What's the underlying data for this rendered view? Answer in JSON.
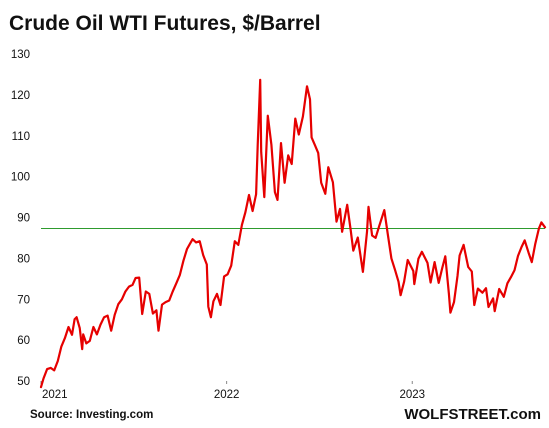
{
  "chart_data": {
    "type": "line",
    "title": "Crude Oil WTI Futures, $/Barrel",
    "source": "Source: Investing.com",
    "brand": "WOLFSTREET.com",
    "xlabel": "",
    "ylabel": "",
    "ylim": [
      50,
      130
    ],
    "yticks": [
      50,
      60,
      70,
      80,
      90,
      100,
      110,
      120,
      130
    ],
    "x_ticks": [
      "2021",
      "2022",
      "2023"
    ],
    "xlim": [
      "2021-01-01",
      "2023-09-19"
    ],
    "grid": false,
    "reference_line": {
      "value": 87.3,
      "color": "#2e9b2e"
    },
    "series": [
      {
        "color": "#e60000",
        "points": [
          [
            "2021-01-01",
            48.5
          ],
          [
            "2021-01-06",
            50.6
          ],
          [
            "2021-01-13",
            52.9
          ],
          [
            "2021-01-20",
            53.2
          ],
          [
            "2021-01-27",
            52.6
          ],
          [
            "2021-02-03",
            54.9
          ],
          [
            "2021-02-10",
            58.4
          ],
          [
            "2021-02-17",
            60.5
          ],
          [
            "2021-02-24",
            63.2
          ],
          [
            "2021-03-03",
            61.3
          ],
          [
            "2021-03-08",
            65.1
          ],
          [
            "2021-03-12",
            65.6
          ],
          [
            "2021-03-18",
            63.0
          ],
          [
            "2021-03-23",
            57.8
          ],
          [
            "2021-03-25",
            61.4
          ],
          [
            "2021-03-31",
            59.2
          ],
          [
            "2021-04-07",
            59.8
          ],
          [
            "2021-04-14",
            63.2
          ],
          [
            "2021-04-21",
            61.4
          ],
          [
            "2021-04-28",
            63.8
          ],
          [
            "2021-05-05",
            65.6
          ],
          [
            "2021-05-12",
            66.0
          ],
          [
            "2021-05-19",
            62.3
          ],
          [
            "2021-05-26",
            66.2
          ],
          [
            "2021-06-02",
            68.8
          ],
          [
            "2021-06-09",
            70.0
          ],
          [
            "2021-06-16",
            71.9
          ],
          [
            "2021-06-23",
            73.1
          ],
          [
            "2021-06-30",
            73.5
          ],
          [
            "2021-07-06",
            75.2
          ],
          [
            "2021-07-13",
            75.3
          ],
          [
            "2021-07-19",
            66.4
          ],
          [
            "2021-07-26",
            71.9
          ],
          [
            "2021-08-02",
            71.3
          ],
          [
            "2021-08-09",
            66.5
          ],
          [
            "2021-08-16",
            67.3
          ],
          [
            "2021-08-20",
            62.3
          ],
          [
            "2021-08-27",
            68.7
          ],
          [
            "2021-09-03",
            69.3
          ],
          [
            "2021-09-10",
            69.7
          ],
          [
            "2021-09-17",
            71.9
          ],
          [
            "2021-09-24",
            73.9
          ],
          [
            "2021-10-01",
            75.9
          ],
          [
            "2021-10-08",
            79.4
          ],
          [
            "2021-10-15",
            82.3
          ],
          [
            "2021-10-22",
            83.8
          ],
          [
            "2021-10-26",
            84.7
          ],
          [
            "2021-11-02",
            83.9
          ],
          [
            "2021-11-09",
            84.2
          ],
          [
            "2021-11-16",
            80.8
          ],
          [
            "2021-11-23",
            78.5
          ],
          [
            "2021-11-26",
            68.2
          ],
          [
            "2021-12-01",
            65.6
          ],
          [
            "2021-12-06",
            69.5
          ],
          [
            "2021-12-13",
            71.3
          ],
          [
            "2021-12-20",
            68.6
          ],
          [
            "2021-12-27",
            75.6
          ],
          [
            "2022-01-03",
            76.1
          ],
          [
            "2022-01-10",
            78.2
          ],
          [
            "2022-01-17",
            84.2
          ],
          [
            "2022-01-24",
            83.3
          ],
          [
            "2022-01-31",
            88.2
          ],
          [
            "2022-02-07",
            91.3
          ],
          [
            "2022-02-14",
            95.5
          ],
          [
            "2022-02-21",
            91.6
          ],
          [
            "2022-02-28",
            95.7
          ],
          [
            "2022-03-03",
            107.7
          ],
          [
            "2022-03-08",
            123.7
          ],
          [
            "2022-03-10",
            106.0
          ],
          [
            "2022-03-16",
            95.0
          ],
          [
            "2022-03-23",
            114.9
          ],
          [
            "2022-03-30",
            107.8
          ],
          [
            "2022-04-06",
            96.2
          ],
          [
            "2022-04-11",
            94.3
          ],
          [
            "2022-04-18",
            108.2
          ],
          [
            "2022-04-25",
            98.5
          ],
          [
            "2022-05-02",
            105.2
          ],
          [
            "2022-05-09",
            103.1
          ],
          [
            "2022-05-16",
            114.2
          ],
          [
            "2022-05-23",
            110.3
          ],
          [
            "2022-05-31",
            114.7
          ],
          [
            "2022-06-08",
            122.1
          ],
          [
            "2022-06-14",
            118.9
          ],
          [
            "2022-06-17",
            109.6
          ],
          [
            "2022-06-24",
            107.6
          ],
          [
            "2022-06-30",
            105.8
          ],
          [
            "2022-07-06",
            98.5
          ],
          [
            "2022-07-14",
            95.8
          ],
          [
            "2022-07-20",
            102.3
          ],
          [
            "2022-07-29",
            98.6
          ],
          [
            "2022-08-05",
            89.0
          ],
          [
            "2022-08-12",
            92.1
          ],
          [
            "2022-08-16",
            86.5
          ],
          [
            "2022-08-26",
            93.1
          ],
          [
            "2022-09-02",
            86.9
          ],
          [
            "2022-09-07",
            81.9
          ],
          [
            "2022-09-16",
            85.1
          ],
          [
            "2022-09-26",
            76.7
          ],
          [
            "2022-10-04",
            86.5
          ],
          [
            "2022-10-07",
            92.6
          ],
          [
            "2022-10-14",
            85.6
          ],
          [
            "2022-10-21",
            85.0
          ],
          [
            "2022-10-28",
            87.9
          ],
          [
            "2022-11-07",
            91.8
          ],
          [
            "2022-11-14",
            85.9
          ],
          [
            "2022-11-21",
            80.0
          ],
          [
            "2022-11-28",
            77.2
          ],
          [
            "2022-12-05",
            74.3
          ],
          [
            "2022-12-09",
            71.0
          ],
          [
            "2022-12-16",
            74.3
          ],
          [
            "2022-12-23",
            79.6
          ],
          [
            "2023-01-03",
            76.9
          ],
          [
            "2023-01-05",
            73.7
          ],
          [
            "2023-01-13",
            79.9
          ],
          [
            "2023-01-20",
            81.6
          ],
          [
            "2023-01-31",
            78.9
          ],
          [
            "2023-02-06",
            74.1
          ],
          [
            "2023-02-14",
            79.1
          ],
          [
            "2023-02-22",
            74.0
          ],
          [
            "2023-03-01",
            77.7
          ],
          [
            "2023-03-07",
            80.5
          ],
          [
            "2023-03-14",
            71.3
          ],
          [
            "2023-03-17",
            66.7
          ],
          [
            "2023-03-24",
            69.3
          ],
          [
            "2023-03-31",
            75.7
          ],
          [
            "2023-04-04",
            80.7
          ],
          [
            "2023-04-12",
            83.3
          ],
          [
            "2023-04-21",
            77.9
          ],
          [
            "2023-04-28",
            76.8
          ],
          [
            "2023-05-03",
            68.6
          ],
          [
            "2023-05-10",
            72.6
          ],
          [
            "2023-05-19",
            71.6
          ],
          [
            "2023-05-26",
            72.7
          ],
          [
            "2023-05-31",
            68.1
          ],
          [
            "2023-06-09",
            70.2
          ],
          [
            "2023-06-12",
            67.1
          ],
          [
            "2023-06-21",
            72.5
          ],
          [
            "2023-06-30",
            70.6
          ],
          [
            "2023-07-07",
            73.9
          ],
          [
            "2023-07-14",
            75.4
          ],
          [
            "2023-07-21",
            77.1
          ],
          [
            "2023-07-28",
            80.6
          ],
          [
            "2023-08-04",
            82.8
          ],
          [
            "2023-08-10",
            84.4
          ],
          [
            "2023-08-18",
            81.3
          ],
          [
            "2023-08-24",
            79.1
          ],
          [
            "2023-08-31",
            83.6
          ],
          [
            "2023-09-07",
            87.3
          ],
          [
            "2023-09-12",
            88.8
          ],
          [
            "2023-09-19",
            87.6
          ]
        ]
      }
    ]
  }
}
